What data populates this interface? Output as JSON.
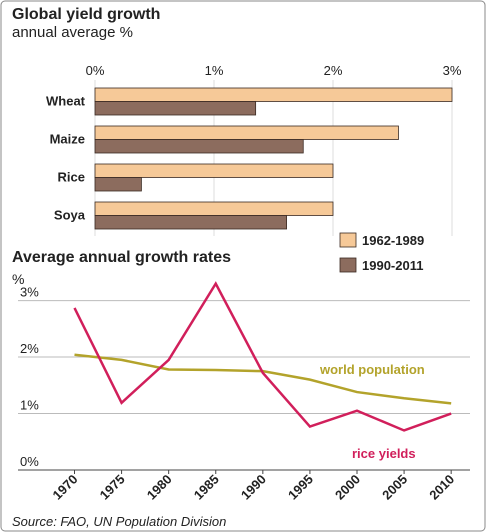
{
  "chart_data": [
    {
      "type": "barh",
      "title": "Global yield growth",
      "subtitle": "annual average %",
      "categories": [
        "Wheat",
        "Maize",
        "Rice",
        "Soya"
      ],
      "series": [
        {
          "name": "1962-1989",
          "color": "#f6c998",
          "values": [
            3.0,
            2.55,
            2.0,
            2.0
          ]
        },
        {
          "name": "1990-2011",
          "color": "#8c6c5e",
          "values": [
            1.35,
            1.75,
            0.39,
            1.61
          ]
        }
      ],
      "xlim": [
        0,
        3
      ],
      "xticks": [
        {
          "value": 0,
          "label": "0%"
        },
        {
          "value": 1,
          "label": "1%"
        },
        {
          "value": 2,
          "label": "2%"
        },
        {
          "value": 3,
          "label": "3%"
        }
      ],
      "grid": true,
      "legend": "bottom-right"
    },
    {
      "type": "line",
      "title": "Average annual growth rates",
      "ylabel": "%",
      "x": [
        1970,
        1975,
        1980,
        1985,
        1990,
        1995,
        2000,
        2005,
        2010
      ],
      "series": [
        {
          "name": "world population",
          "color": "#b3a32b",
          "values": [
            2.04,
            1.95,
            1.78,
            1.77,
            1.75,
            1.6,
            1.38,
            1.27,
            1.18
          ]
        },
        {
          "name": "rice yields",
          "color": "#d11f5b",
          "values": [
            2.87,
            1.19,
            1.95,
            3.3,
            1.72,
            0.77,
            1.05,
            0.7,
            1.0
          ]
        }
      ],
      "xlim": [
        1964,
        2012
      ],
      "ylim": [
        0,
        3.4
      ],
      "xticks": [
        1970,
        1975,
        1980,
        1985,
        1990,
        1995,
        2000,
        2005,
        2010
      ],
      "yticks": [
        {
          "value": 0,
          "label": "0%"
        },
        {
          "value": 1,
          "label": "1%"
        },
        {
          "value": 2,
          "label": "2%"
        },
        {
          "value": 3,
          "label": "3%"
        }
      ],
      "grid": true
    }
  ],
  "source": "Source: FAO, UN Population Division"
}
